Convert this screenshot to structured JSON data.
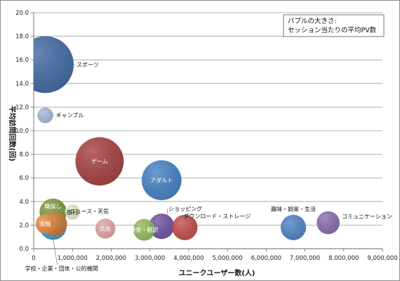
{
  "chart_data": {
    "type": "bubble",
    "xlabel": "ユニークユーザー数(人)",
    "ylabel": "平均訪問回数(回)",
    "xlim": [
      0,
      9000000
    ],
    "ylim": [
      0,
      20
    ],
    "x_ticks": [
      "0",
      "1,000,000",
      "2,000,000",
      "3,000,000",
      "4,000,000",
      "5,000,000",
      "6,000,000",
      "7,000,000",
      "8,000,000",
      "9,000,000"
    ],
    "y_ticks": [
      "0.0",
      "2.0",
      "4.0",
      "6.0",
      "8.0",
      "10.0",
      "12.0",
      "14.0",
      "16.0",
      "18.0",
      "20.0"
    ],
    "grid": "horizontal",
    "legend_note": [
      "バブルの大きさ:",
      "セッション当たりの平均PV数"
    ],
    "series": [
      {
        "name": "スポーツ",
        "x": 300000,
        "y": 15.6,
        "size": 9.4,
        "color": "#3C65A3",
        "label_pos": "right"
      },
      {
        "name": "ギャンブル",
        "x": 300000,
        "y": 11.3,
        "size": 2.6,
        "color": "#A7B8D8",
        "label_pos": "right"
      },
      {
        "name": "ゲーム",
        "x": 1700000,
        "y": 7.4,
        "size": 8.0,
        "color": "#A43C3A",
        "label_pos": "center"
      },
      {
        "name": "アダルト",
        "x": 3300000,
        "y": 5.8,
        "size": 6.6,
        "color": "#3E7FC3",
        "label_pos": "center"
      },
      {
        "name": "ショッピング",
        "x": 3300000,
        "y": 1.9,
        "size": 4.2,
        "color": "#6A4FA0",
        "label_pos": "right"
      },
      {
        "name": "ダウンロード・ストレージ",
        "x": 3900000,
        "y": 1.8,
        "size": 4.2,
        "color": "#C44848",
        "label_pos": "right"
      },
      {
        "name": "検索・翻訳",
        "x": 2850000,
        "y": 1.6,
        "size": 3.6,
        "color": "#93BA5A",
        "label_pos": "center"
      },
      {
        "name": "広告",
        "x": 1850000,
        "y": 1.7,
        "size": 3.3,
        "color": "#E0A4A4",
        "label_pos": "center"
      },
      {
        "name": "職探し",
        "x": 500000,
        "y": 3.1,
        "size": 4.5,
        "color": "#7A9A3E",
        "label_pos": "center"
      },
      {
        "name": "学校・企業・団体・公的機関",
        "x": 500000,
        "y": 1.9,
        "size": 4.5,
        "color": "#3B97C9",
        "label_pos": "below"
      },
      {
        "name": "ニュース・天気",
        "x": 550000,
        "y": 2.1,
        "size": 4.0,
        "color": "#D07A30",
        "label_pos": "right"
      },
      {
        "name": "旅行",
        "x": 1000000,
        "y": 3.1,
        "size": 2.5,
        "color": "#E4EDC7",
        "label_pos": "center"
      },
      {
        "name": "金融",
        "x": 300000,
        "y": 2.1,
        "size": 3.2,
        "color": "#EE8E44",
        "label_pos": "center"
      },
      {
        "name": "趣味・娯楽・生活",
        "x": 6700000,
        "y": 1.8,
        "size": 4.2,
        "color": "#4C82C3",
        "label_pos": "above"
      },
      {
        "name": "コミュニケーション",
        "x": 7600000,
        "y": 2.2,
        "size": 3.8,
        "color": "#8868AC",
        "label_pos": "right"
      }
    ]
  }
}
